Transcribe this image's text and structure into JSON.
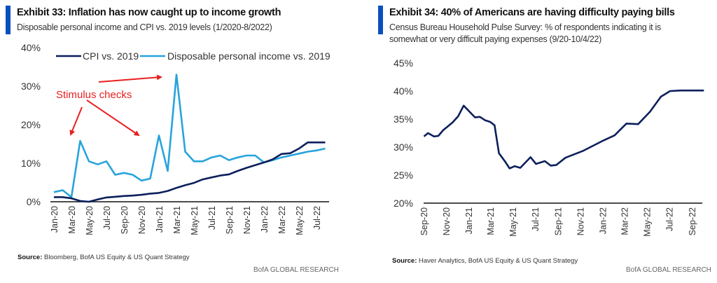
{
  "chart_data": [
    {
      "type": "line",
      "title": "Exhibit 33: Inflation has now caught up to income growth",
      "subtitle": "Disposable personal income and CPI vs. 2019 levels (1/2020-8/2022)",
      "x": [
        "Jan-20",
        "Feb-20",
        "Mar-20",
        "Apr-20",
        "May-20",
        "Jun-20",
        "Jul-20",
        "Aug-20",
        "Sep-20",
        "Oct-20",
        "Nov-20",
        "Dec-20",
        "Jan-21",
        "Feb-21",
        "Mar-21",
        "Apr-21",
        "May-21",
        "Jun-21",
        "Jul-21",
        "Aug-21",
        "Sep-21",
        "Oct-21",
        "Nov-21",
        "Dec-21",
        "Jan-22",
        "Feb-22",
        "Mar-22",
        "Apr-22",
        "May-22",
        "Jun-22",
        "Jul-22",
        "Aug-22"
      ],
      "x_tick_labels": [
        "Jan-20",
        "Mar-20",
        "May-20",
        "Jul-20",
        "Sep-20",
        "Nov-20",
        "Jan-21",
        "Mar-21",
        "May-21",
        "Jul-21",
        "Sep-21",
        "Nov-21",
        "Jan-22",
        "Mar-22",
        "May-22",
        "Jul-22"
      ],
      "y_tick_labels": [
        "0%",
        "10%",
        "20%",
        "30%",
        "40%"
      ],
      "ylim": [
        0,
        40
      ],
      "y_unit": "%",
      "grid": false,
      "legend_placement": "top",
      "series": [
        {
          "name": "CPI vs. 2019",
          "color": "#0b1f5c",
          "values": [
            1.2,
            1.2,
            0.9,
            0.2,
            0,
            0.6,
            1.1,
            1.3,
            1.5,
            1.6,
            1.8,
            2.1,
            2.3,
            2.8,
            3.6,
            4.3,
            4.9,
            5.8,
            6.3,
            6.8,
            7.1,
            8.0,
            8.8,
            9.5,
            10.2,
            11.0,
            12.4,
            12.6,
            13.8,
            15.4,
            15.4,
            15.4
          ]
        },
        {
          "name": "Disposable personal income vs. 2019",
          "color": "#27a4dc",
          "values": [
            2.5,
            3.0,
            1.2,
            15.8,
            10.5,
            9.7,
            10.5,
            7.0,
            7.5,
            7.0,
            5.5,
            6.0,
            17.2,
            8.0,
            33.0,
            13.0,
            10.5,
            10.5,
            11.5,
            12.0,
            10.8,
            11.5,
            12.0,
            12.0,
            10.2,
            10.8,
            11.5,
            12.0,
            12.5,
            13.0,
            13.3,
            13.8
          ]
        }
      ],
      "annotations": [
        {
          "text": "Stimulus checks",
          "color": "#e8201f",
          "points_to": [
            "Apr-20",
            "Dec-20",
            "Mar-21"
          ]
        }
      ],
      "source_label": "Source:",
      "source": "Bloomberg, BofA US Equity & US Quant Strategy",
      "brand": "BofA GLOBAL RESEARCH"
    },
    {
      "type": "line",
      "title": "Exhibit 34: 40% of Americans are having difficulty paying bills",
      "subtitle": [
        "Census Bureau Household Pulse Survey: % of respondents indicating it is",
        "somewhat or very difficult paying expenses (9/20-10/4/22)"
      ],
      "x_tick_labels": [
        "Sep-20",
        "Nov-20",
        "Jan-21",
        "Mar-21",
        "May-21",
        "Jul-21",
        "Sep-21",
        "Nov-21",
        "Jan-22",
        "Mar-22",
        "May-22",
        "Jul-22",
        "Sep-22"
      ],
      "y_tick_labels": [
        "20%",
        "25%",
        "30%",
        "35%",
        "40%",
        "45%"
      ],
      "ylim": [
        20,
        45
      ],
      "y_unit": "%",
      "grid": false,
      "series": [
        {
          "color": "#0b1f5c",
          "x": [
            "2020-09-02",
            "2020-09-13",
            "2020-09-29",
            "2020-10-11",
            "2020-10-24",
            "2020-11-19",
            "2020-12-04",
            "2020-12-19",
            "2021-01-19",
            "2021-02-01",
            "2021-02-15",
            "2021-03-01",
            "2021-03-13",
            "2021-03-25",
            "2021-04-10",
            "2021-04-23",
            "2021-05-07",
            "2021-05-22",
            "2021-06-19",
            "2021-07-04",
            "2021-07-28",
            "2021-08-13",
            "2021-08-28",
            "2021-09-22",
            "2021-11-08",
            "2022-01-04",
            "2022-02-03",
            "2022-03-07",
            "2022-04-08",
            "2022-05-10",
            "2022-06-09",
            "2022-07-04",
            "2022-08-01",
            "2022-10-04"
          ],
          "values": [
            31.9,
            32.5,
            31.9,
            32.0,
            33.0,
            34.4,
            35.5,
            37.4,
            35.3,
            35.4,
            34.8,
            34.5,
            33.9,
            28.9,
            27.5,
            26.2,
            26.6,
            26.3,
            28.2,
            27.0,
            27.5,
            26.7,
            26.8,
            28.1,
            29.3,
            31.2,
            32.1,
            34.2,
            34.1,
            36.3,
            39.0,
            40.0,
            40.1,
            40.1
          ]
        }
      ],
      "source_label": "Source:",
      "source": "Haver Analytics, BofA US Equity & US Quant Strategy",
      "brand": "BofA GLOBAL RESEARCH"
    }
  ]
}
